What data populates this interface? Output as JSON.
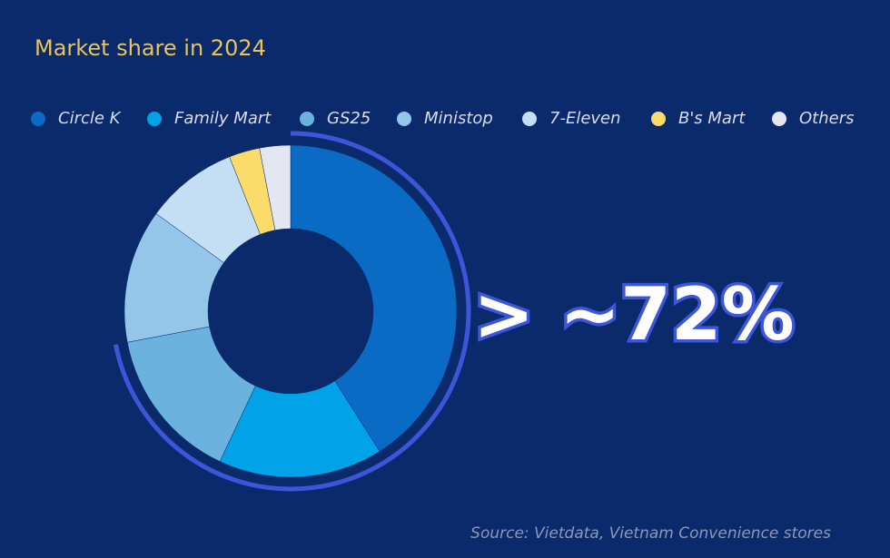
{
  "chart_data": {
    "type": "donut",
    "title": "Market share in 2024",
    "categories": [
      "Circle K",
      "Family Mart",
      "GS25",
      "Ministop",
      "7-Eleven",
      "B's Mart",
      "Others"
    ],
    "values": [
      41,
      16,
      15,
      13,
      9,
      3,
      3
    ],
    "colors": [
      "#0a6bc4",
      "#00a2e8",
      "#6bb3de",
      "#93c6e8",
      "#c4def3",
      "#fbdc6a",
      "#e4e6f0"
    ],
    "annotation": "> ~72%",
    "source": "Source: Vietdata, Vietnam Convenience stores"
  }
}
